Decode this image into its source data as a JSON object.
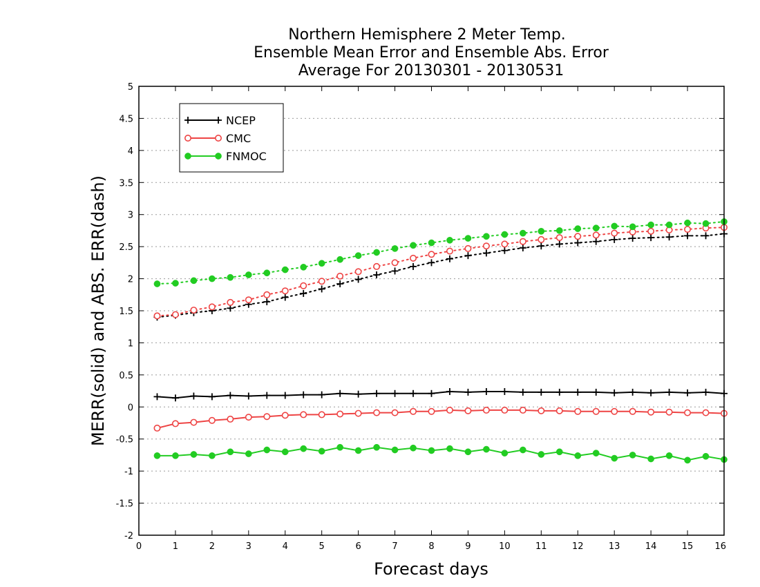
{
  "chart_data": {
    "type": "line",
    "title": [
      "Northern Hemisphere 2 Meter Temp.",
      "Ensemble Mean Error and Ensemble Abs. Error",
      "Average For 20130301 - 20130531"
    ],
    "xlabel": "Forecast days",
    "ylabel": "MERR(solid) and ABS. ERR(dash)",
    "xlim": [
      0,
      16
    ],
    "ylim": [
      -2,
      5
    ],
    "xticks": [
      "0",
      "1",
      "2",
      "3",
      "4",
      "5",
      "6",
      "7",
      "8",
      "9",
      "10",
      "11",
      "12",
      "13",
      "14",
      "15",
      "16"
    ],
    "yticks": [
      "-2",
      "-1.5",
      "-1",
      "-0.5",
      "0",
      "0.5",
      "1",
      "1.5",
      "2",
      "2.5",
      "3",
      "3.5",
      "4",
      "4.5",
      "5"
    ],
    "grid": "horizontal dotted",
    "legend_position": "top-left",
    "x": [
      0.5,
      1,
      1.5,
      2,
      2.5,
      3,
      3.5,
      4,
      4.5,
      5,
      5.5,
      6,
      6.5,
      7,
      7.5,
      8,
      8.5,
      9,
      9.5,
      10,
      10.5,
      11,
      11.5,
      12,
      12.5,
      13,
      13.5,
      14,
      14.5,
      15,
      15.5,
      16
    ],
    "series": [
      {
        "name": "NCEP",
        "color": "#000000",
        "marker": "plus",
        "merr": [
          0.16,
          0.14,
          0.17,
          0.16,
          0.18,
          0.17,
          0.18,
          0.18,
          0.19,
          0.19,
          0.21,
          0.2,
          0.21,
          0.21,
          0.21,
          0.21,
          0.24,
          0.23,
          0.24,
          0.24,
          0.23,
          0.23,
          0.23,
          0.23,
          0.23,
          0.22,
          0.23,
          0.22,
          0.23,
          0.22,
          0.23,
          0.21
        ],
        "abs_err": [
          1.4,
          1.43,
          1.47,
          1.5,
          1.54,
          1.6,
          1.64,
          1.71,
          1.77,
          1.84,
          1.92,
          1.99,
          2.06,
          2.12,
          2.19,
          2.25,
          2.31,
          2.36,
          2.4,
          2.44,
          2.48,
          2.51,
          2.54,
          2.56,
          2.58,
          2.61,
          2.63,
          2.64,
          2.65,
          2.67,
          2.67,
          2.7
        ]
      },
      {
        "name": "CMC",
        "color": "#ee4444",
        "marker": "open-circle",
        "merr": [
          -0.33,
          -0.26,
          -0.24,
          -0.21,
          -0.19,
          -0.16,
          -0.15,
          -0.13,
          -0.12,
          -0.12,
          -0.11,
          -0.1,
          -0.09,
          -0.09,
          -0.07,
          -0.07,
          -0.05,
          -0.06,
          -0.05,
          -0.05,
          -0.05,
          -0.06,
          -0.06,
          -0.07,
          -0.07,
          -0.07,
          -0.07,
          -0.08,
          -0.08,
          -0.09,
          -0.09,
          -0.1
        ],
        "abs_err": [
          1.42,
          1.44,
          1.51,
          1.56,
          1.63,
          1.67,
          1.75,
          1.81,
          1.89,
          1.96,
          2.04,
          2.11,
          2.19,
          2.25,
          2.32,
          2.38,
          2.43,
          2.47,
          2.51,
          2.54,
          2.58,
          2.61,
          2.64,
          2.66,
          2.68,
          2.71,
          2.73,
          2.74,
          2.76,
          2.77,
          2.79,
          2.8
        ]
      },
      {
        "name": "FNMOC",
        "color": "#22cc22",
        "marker": "filled-circle",
        "merr": [
          -0.76,
          -0.76,
          -0.74,
          -0.76,
          -0.7,
          -0.73,
          -0.67,
          -0.7,
          -0.65,
          -0.69,
          -0.63,
          -0.68,
          -0.63,
          -0.67,
          -0.64,
          -0.68,
          -0.65,
          -0.7,
          -0.66,
          -0.72,
          -0.67,
          -0.74,
          -0.7,
          -0.76,
          -0.72,
          -0.8,
          -0.75,
          -0.81,
          -0.76,
          -0.83,
          -0.77,
          -0.82
        ],
        "abs_err": [
          1.92,
          1.93,
          1.97,
          2.0,
          2.02,
          2.06,
          2.09,
          2.14,
          2.18,
          2.24,
          2.3,
          2.36,
          2.41,
          2.47,
          2.52,
          2.56,
          2.6,
          2.63,
          2.66,
          2.69,
          2.71,
          2.74,
          2.75,
          2.78,
          2.79,
          2.82,
          2.81,
          2.84,
          2.84,
          2.87,
          2.86,
          2.89
        ]
      }
    ]
  }
}
